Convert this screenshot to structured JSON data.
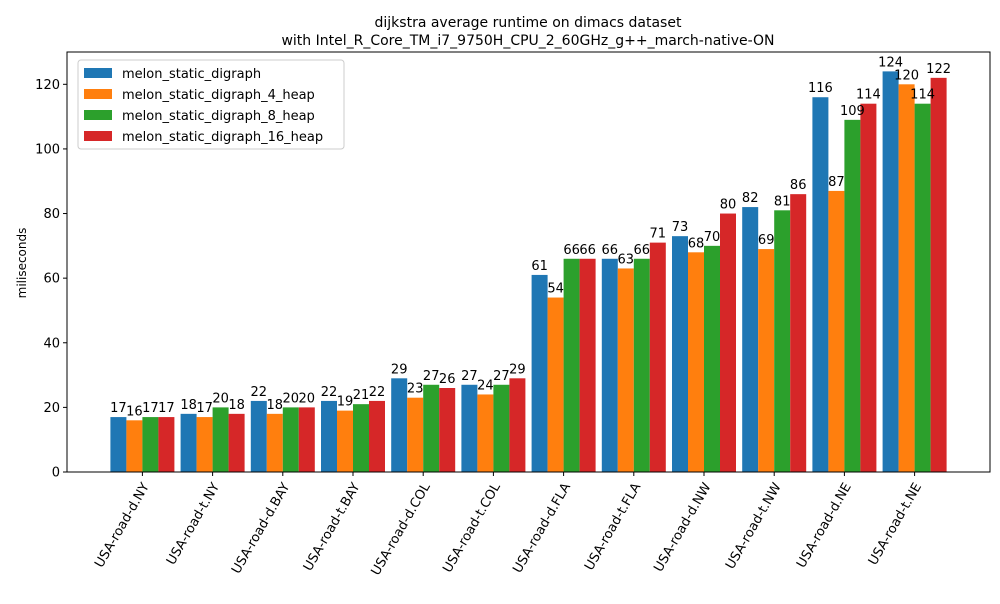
{
  "chart_data": {
    "type": "bar",
    "title": "dijkstra average runtime on dimacs dataset",
    "subtitle": "with Intel_R_Core_TM_i7_9750H_CPU_2_60GHz_g++_march-native-ON",
    "xlabel": "",
    "ylabel": "miliseconds",
    "ylim": [
      0,
      130
    ],
    "yticks": [
      0,
      20,
      40,
      60,
      80,
      100,
      120
    ],
    "grid": false,
    "legend_position": "top-left",
    "categories": [
      "USA-road-d.NY",
      "USA-road-t.NY",
      "USA-road-d.BAY",
      "USA-road-t.BAY",
      "USA-road-d.COL",
      "USA-road-t.COL",
      "USA-road-d.FLA",
      "USA-road-t.FLA",
      "USA-road-d.NW",
      "USA-road-t.NW",
      "USA-road-d.NE",
      "USA-road-t.NE"
    ],
    "series": [
      {
        "name": "melon_static_digraph",
        "color": "#1f77b4",
        "values": [
          17,
          18,
          22,
          22,
          29,
          27,
          61,
          66,
          73,
          82,
          116,
          124
        ]
      },
      {
        "name": "melon_static_digraph_4_heap",
        "color": "#ff7f0e",
        "values": [
          16,
          17,
          18,
          19,
          23,
          24,
          54,
          63,
          68,
          69,
          87,
          120
        ]
      },
      {
        "name": "melon_static_digraph_8_heap",
        "color": "#2ca02c",
        "values": [
          17,
          20,
          20,
          21,
          27,
          27,
          66,
          66,
          70,
          81,
          109,
          114
        ]
      },
      {
        "name": "melon_static_digraph_16_heap",
        "color": "#d62728",
        "values": [
          17,
          18,
          20,
          22,
          26,
          29,
          66,
          71,
          80,
          86,
          114,
          122
        ]
      }
    ]
  }
}
